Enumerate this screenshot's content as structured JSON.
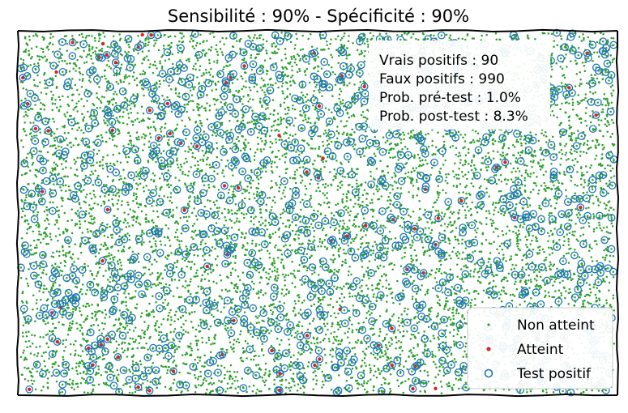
{
  "chart_data": {
    "type": "scatter",
    "title": "Sensibilité : 90% - Spécificité : 90%",
    "xlabel": "",
    "ylabel": "",
    "xlim": [
      0,
      1
    ],
    "ylim": [
      0,
      1
    ],
    "grid": false,
    "legend_position": "bottom-right",
    "stats_box": {
      "position": "top-right",
      "lines": [
        "Vrais positifs : 90",
        "Faux positifs : 990",
        "Prob. pré-test : 1.0%",
        "Prob. post-test : 8.3%"
      ]
    },
    "series": [
      {
        "name": "Non atteint",
        "marker": "dot",
        "color": "#2ca02c",
        "count": 9900
      },
      {
        "name": "Atteint",
        "marker": "dot",
        "color": "#d62728",
        "count": 100
      },
      {
        "name": "Test positif",
        "marker": "ring",
        "color": "#1f77b4",
        "count": 1080,
        "composition": {
          "true_positives": 90,
          "false_positives": 990
        }
      }
    ],
    "annotations": {
      "true_positives": 90,
      "false_positives": 990,
      "pre_test_probability_pct": 1.0,
      "post_test_probability_pct": 8.3
    }
  }
}
